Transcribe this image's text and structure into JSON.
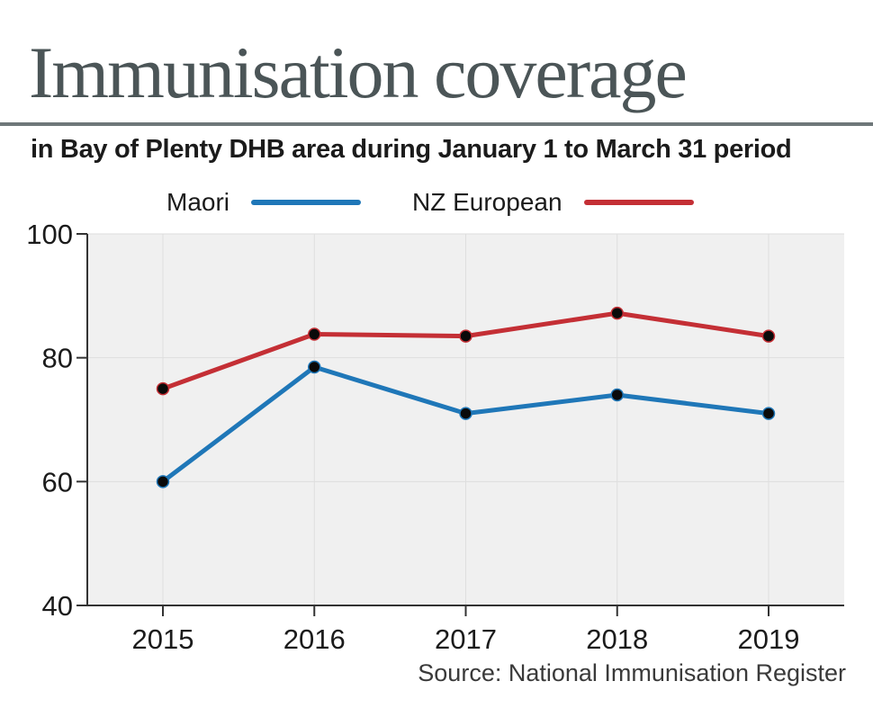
{
  "title": "Immunisation coverage",
  "subtitle": "in Bay of Plenty DHB area during January 1 to March 31 period",
  "source": "Source: National Immunisation Register",
  "colors": {
    "maori": "#1f77b8",
    "nz_european": "#c42f35",
    "plot_bg": "#f0f0f0",
    "marker": "#0a0a0a"
  },
  "chart_data": {
    "type": "line",
    "title": "Immunisation coverage",
    "subtitle": "in Bay of Plenty DHB area during January 1 to March 31 period",
    "x": [
      "2015",
      "2016",
      "2017",
      "2018",
      "2019"
    ],
    "series": [
      {
        "name": "Maori",
        "color": "#1f77b8",
        "values": [
          60,
          78.5,
          71,
          74,
          71
        ]
      },
      {
        "name": "NZ European",
        "color": "#c42f35",
        "values": [
          75,
          83.8,
          83.5,
          87.2,
          83.5
        ]
      }
    ],
    "xlabel": "",
    "ylabel": "",
    "ylim": [
      40,
      100
    ],
    "yticks": [
      40,
      60,
      80,
      100
    ],
    "grid": true,
    "legend_position": "top"
  }
}
